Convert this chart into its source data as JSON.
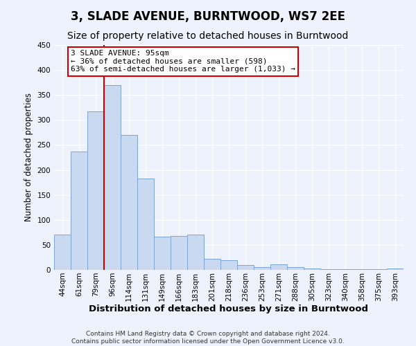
{
  "title": "3, SLADE AVENUE, BURNTWOOD, WS7 2EE",
  "subtitle": "Size of property relative to detached houses in Burntwood",
  "xlabel": "Distribution of detached houses by size in Burntwood",
  "ylabel": "Number of detached properties",
  "footer_line1": "Contains HM Land Registry data © Crown copyright and database right 2024.",
  "footer_line2": "Contains public sector information licensed under the Open Government Licence v3.0.",
  "categories": [
    "44sqm",
    "61sqm",
    "79sqm",
    "96sqm",
    "114sqm",
    "131sqm",
    "149sqm",
    "166sqm",
    "183sqm",
    "201sqm",
    "218sqm",
    "236sqm",
    "253sqm",
    "271sqm",
    "288sqm",
    "305sqm",
    "323sqm",
    "340sqm",
    "358sqm",
    "375sqm",
    "393sqm"
  ],
  "values": [
    70,
    237,
    317,
    370,
    270,
    183,
    67,
    68,
    70,
    22,
    20,
    10,
    5,
    11,
    5,
    3,
    2,
    2,
    1,
    1,
    3
  ],
  "bar_color": "#c9d9f0",
  "bar_edge_color": "#7ba4d4",
  "marker_label": "3 SLADE AVENUE: 95sqm",
  "annotation_line1": "← 36% of detached houses are smaller (598)",
  "annotation_line2": "63% of semi-detached houses are larger (1,033) →",
  "marker_color": "#cc0000",
  "annotation_box_color": "#ffffff",
  "annotation_box_edge": "#cc0000",
  "ylim": [
    0,
    450
  ],
  "yticks": [
    0,
    50,
    100,
    150,
    200,
    250,
    300,
    350,
    400,
    450
  ],
  "background_color": "#eef2fc",
  "plot_background": "#eef2fc",
  "grid_color": "#ffffff",
  "title_fontsize": 12,
  "subtitle_fontsize": 10,
  "xlabel_fontsize": 9.5,
  "ylabel_fontsize": 8.5,
  "tick_fontsize": 7.5,
  "annotation_fontsize": 8,
  "footer_fontsize": 6.5
}
